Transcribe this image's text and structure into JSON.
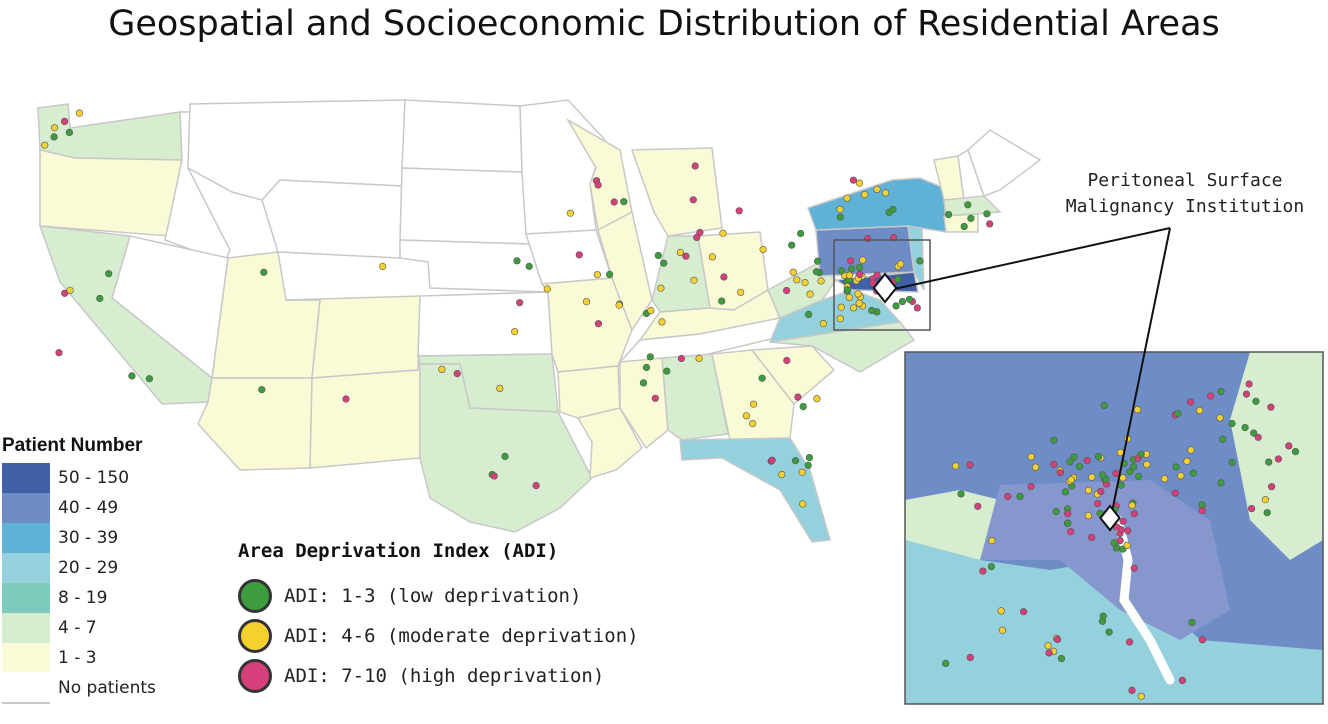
{
  "title": "Geospatial and Socioeconomic Distribution of Residential Areas",
  "institution_label": {
    "line1": "Peritoneal Surface",
    "line2": "Malignancy Institution"
  },
  "colors": {
    "state_border": "#c8c8c8",
    "no_patients": "#ffffff",
    "pin": "#ffffff",
    "leader": "#111111"
  },
  "patient_number_legend": {
    "title": "Patient Number",
    "bins": [
      {
        "label": "50 - 150",
        "color": "#4260a8"
      },
      {
        "label": "40 - 49",
        "color": "#6e8cc6"
      },
      {
        "label": "30 - 39",
        "color": "#5fb2d6"
      },
      {
        "label": "20 - 29",
        "color": "#94d1dd"
      },
      {
        "label": "8 - 19",
        "color": "#7ecbbb"
      },
      {
        "label": "4 - 7",
        "color": "#d6edd0"
      },
      {
        "label": "1 - 3",
        "color": "#fbfad6"
      },
      {
        "label": "No patients",
        "color": "#ffffff"
      }
    ]
  },
  "adi_legend": {
    "title": "Area Deprivation Index (ADI)",
    "categories": [
      {
        "label": "ADI: 1-3 (low deprivation)",
        "color": "#3d9c3d"
      },
      {
        "label": "ADI: 4-6 (moderate deprivation)",
        "color": "#f5d130"
      },
      {
        "label": "ADI: 7-10 (high deprivation)",
        "color": "#d63f7a"
      }
    ]
  }
}
